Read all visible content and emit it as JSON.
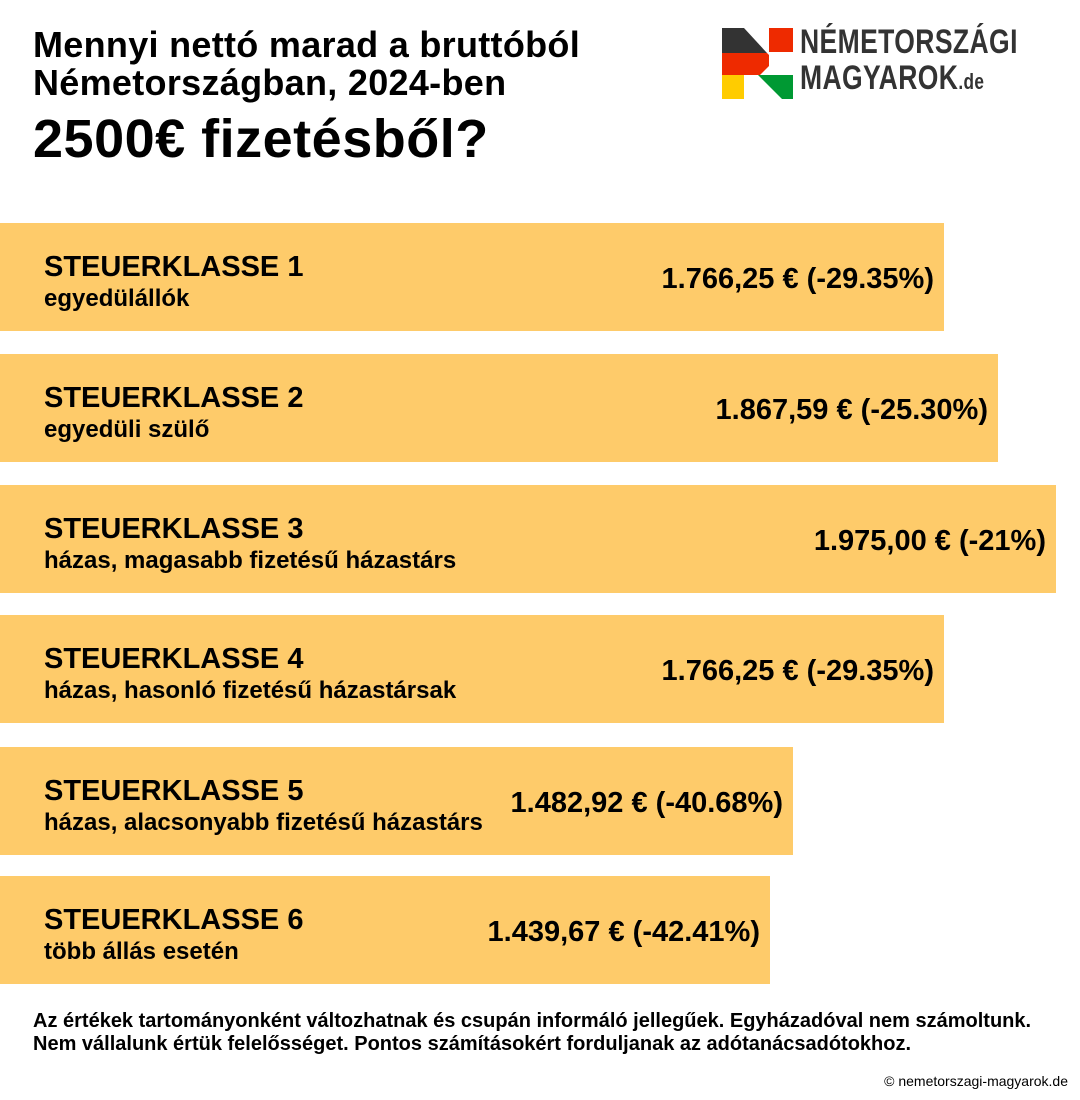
{
  "header": {
    "title_line1": "Mennyi nettó marad a bruttóból",
    "title_line2": "Németországban, 2024-ben",
    "title_line3": "2500€ fizetésből?"
  },
  "logo": {
    "line1": "NÉMETORSZÁGI",
    "line2": "MAGYAROK",
    "suffix": ".de"
  },
  "colors": {
    "bar": "#FECB6A",
    "logo_dark": "#333333",
    "logo_red": "#EE2A00",
    "logo_yellow": "#FFCC00",
    "logo_green": "#009933"
  },
  "chart_data": {
    "type": "bar",
    "orientation": "horizontal",
    "gross": 2500,
    "categories": [
      "STEUERKLASSE 1",
      "STEUERKLASSE 2",
      "STEUERKLASSE 3",
      "STEUERKLASSE 4",
      "STEUERKLASSE 5",
      "STEUERKLASSE 6"
    ],
    "subtitles": [
      "egyedülállók",
      "egyedüli szülő",
      "házas, magasabb fizetésű házastárs",
      "házas, hasonló fizetésű házastársak",
      "házas, alacsonyabb fizetésű házastárs",
      "több állás esetén"
    ],
    "values": [
      1766.25,
      1867.59,
      1975.0,
      1766.25,
      1482.92,
      1439.67
    ],
    "labels": [
      "1.766,25 € (-29.35%)",
      "1.867,59 € (-25.30%)",
      "1.975,00 € (-21%)",
      "1.766,25 € (-29.35%)",
      "1.482,92 € (-40.68%)",
      "1.439,67 € (-42.41%)"
    ]
  },
  "footer": {
    "note": "Az értékek tartományonként változhatnak és csupán informáló jellegűek. Egyházadóval nem számoltunk. Nem vállalunk értük felelősséget. Pontos számításokért forduljanak az adótanácsadótokhoz.",
    "copyright": "© nemetorszagi-magyarok.de"
  }
}
